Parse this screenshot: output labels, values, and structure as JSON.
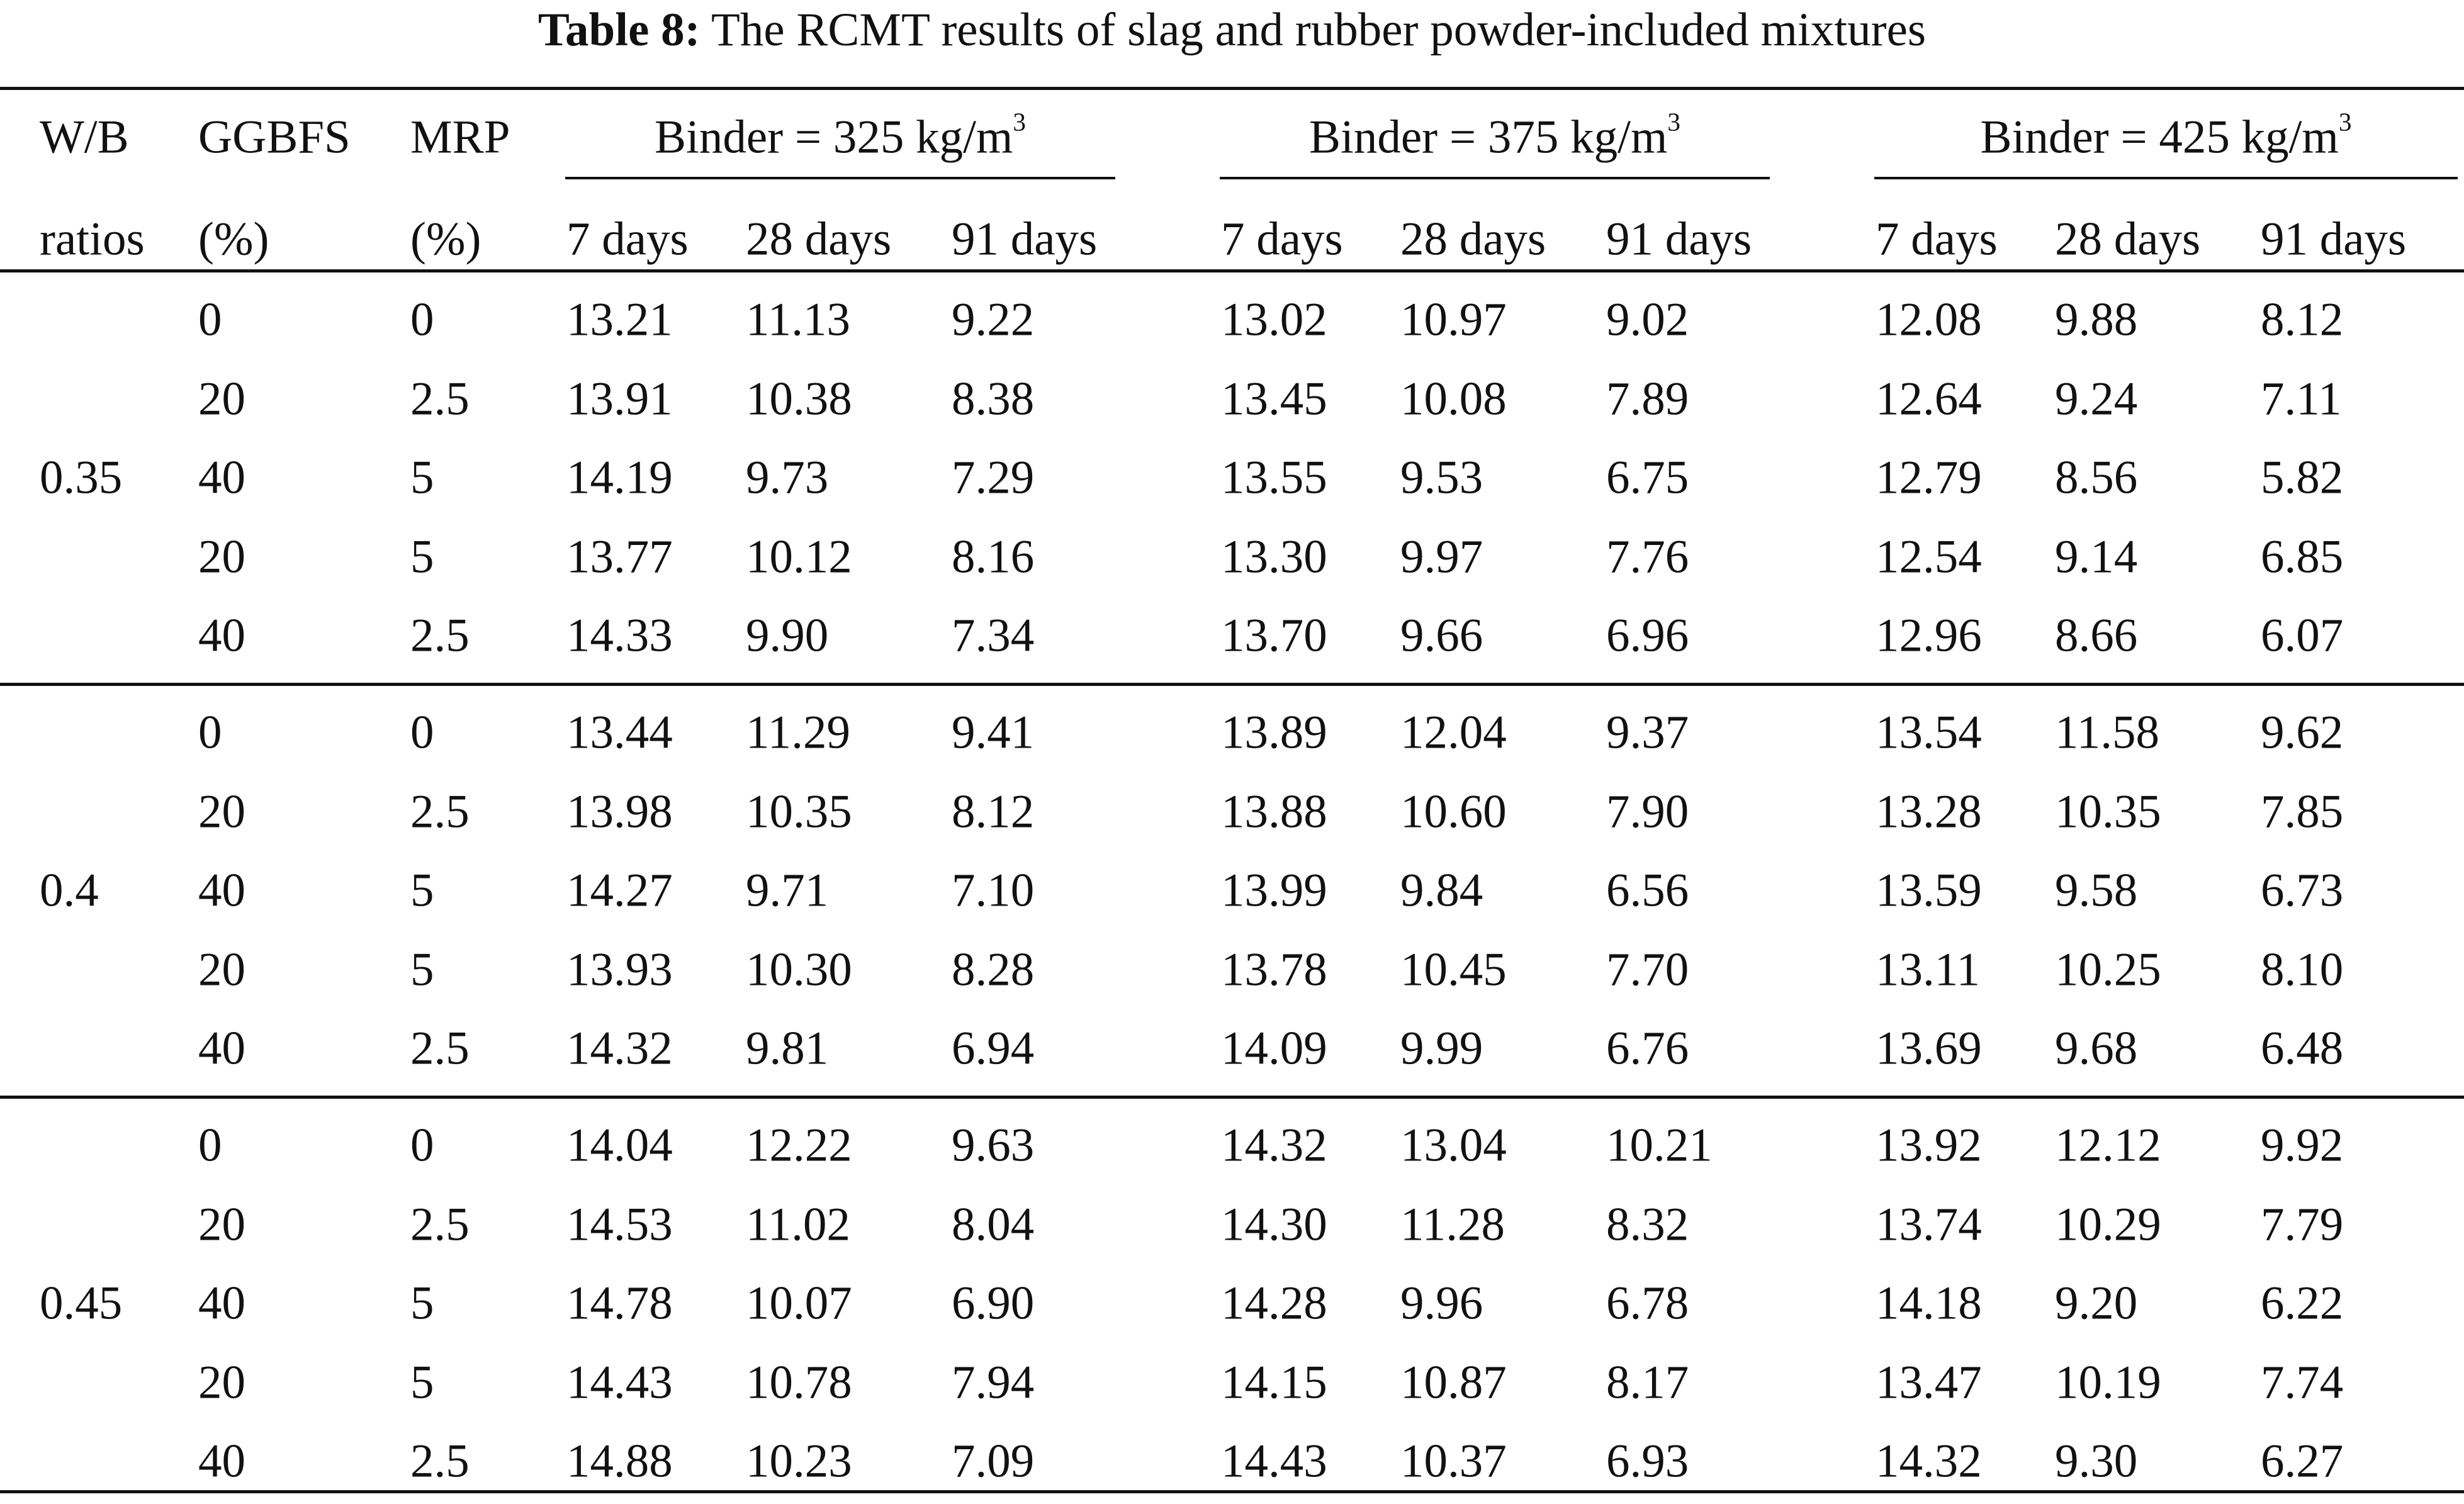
{
  "table": {
    "label": "Table 8:",
    "title": "The RCMT results of slag and rubber powder-included mixtures",
    "header": {
      "wb_line1": "W/B",
      "wb_line2": "ratios",
      "ggbfs_line1": "GGBFS",
      "ggbfs_line2": "(%)",
      "mrp_line1": "MRP",
      "mrp_line2": "(%)",
      "binder_groups": [
        {
          "label": "Binder = 325 kg/m",
          "sup": "3"
        },
        {
          "label": "Binder = 375 kg/m",
          "sup": "3"
        },
        {
          "label": "Binder = 425 kg/m",
          "sup": "3"
        }
      ],
      "ages": [
        "7 days",
        "28 days",
        "91 days"
      ]
    },
    "groups": [
      {
        "wb": "0.35",
        "rows": [
          {
            "ggbfs": "0",
            "mrp": "0",
            "values": [
              "13.21",
              "11.13",
              "9.22",
              "13.02",
              "10.97",
              "9.02",
              "12.08",
              "9.88",
              "8.12"
            ]
          },
          {
            "ggbfs": "20",
            "mrp": "2.5",
            "values": [
              "13.91",
              "10.38",
              "8.38",
              "13.45",
              "10.08",
              "7.89",
              "12.64",
              "9.24",
              "7.11"
            ]
          },
          {
            "ggbfs": "40",
            "mrp": "5",
            "values": [
              "14.19",
              "9.73",
              "7.29",
              "13.55",
              "9.53",
              "6.75",
              "12.79",
              "8.56",
              "5.82"
            ]
          },
          {
            "ggbfs": "20",
            "mrp": "5",
            "values": [
              "13.77",
              "10.12",
              "8.16",
              "13.30",
              "9.97",
              "7.76",
              "12.54",
              "9.14",
              "6.85"
            ]
          },
          {
            "ggbfs": "40",
            "mrp": "2.5",
            "values": [
              "14.33",
              "9.90",
              "7.34",
              "13.70",
              "9.66",
              "6.96",
              "12.96",
              "8.66",
              "6.07"
            ]
          }
        ]
      },
      {
        "wb": "0.4",
        "rows": [
          {
            "ggbfs": "0",
            "mrp": "0",
            "values": [
              "13.44",
              "11.29",
              "9.41",
              "13.89",
              "12.04",
              "9.37",
              "13.54",
              "11.58",
              "9.62"
            ]
          },
          {
            "ggbfs": "20",
            "mrp": "2.5",
            "values": [
              "13.98",
              "10.35",
              "8.12",
              "13.88",
              "10.60",
              "7.90",
              "13.28",
              "10.35",
              "7.85"
            ]
          },
          {
            "ggbfs": "40",
            "mrp": "5",
            "values": [
              "14.27",
              "9.71",
              "7.10",
              "13.99",
              "9.84",
              "6.56",
              "13.59",
              "9.58",
              "6.73"
            ]
          },
          {
            "ggbfs": "20",
            "mrp": "5",
            "values": [
              "13.93",
              "10.30",
              "8.28",
              "13.78",
              "10.45",
              "7.70",
              "13.11",
              "10.25",
              "8.10"
            ]
          },
          {
            "ggbfs": "40",
            "mrp": "2.5",
            "values": [
              "14.32",
              "9.81",
              "6.94",
              "14.09",
              "9.99",
              "6.76",
              "13.69",
              "9.68",
              "6.48"
            ]
          }
        ]
      },
      {
        "wb": "0.45",
        "rows": [
          {
            "ggbfs": "0",
            "mrp": "0",
            "values": [
              "14.04",
              "12.22",
              "9.63",
              "14.32",
              "13.04",
              "10.21",
              "13.92",
              "12.12",
              "9.92"
            ]
          },
          {
            "ggbfs": "20",
            "mrp": "2.5",
            "values": [
              "14.53",
              "11.02",
              "8.04",
              "14.30",
              "11.28",
              "8.32",
              "13.74",
              "10.29",
              "7.79"
            ]
          },
          {
            "ggbfs": "40",
            "mrp": "5",
            "values": [
              "14.78",
              "10.07",
              "6.90",
              "14.28",
              "9.96",
              "6.78",
              "14.18",
              "9.20",
              "6.22"
            ]
          },
          {
            "ggbfs": "20",
            "mrp": "5",
            "values": [
              "14.43",
              "10.78",
              "7.94",
              "14.15",
              "10.87",
              "8.17",
              "13.47",
              "10.19",
              "7.74"
            ]
          },
          {
            "ggbfs": "40",
            "mrp": "2.5",
            "values": [
              "14.88",
              "10.23",
              "7.09",
              "14.43",
              "10.37",
              "6.93",
              "14.32",
              "9.30",
              "6.27"
            ]
          }
        ]
      }
    ]
  }
}
